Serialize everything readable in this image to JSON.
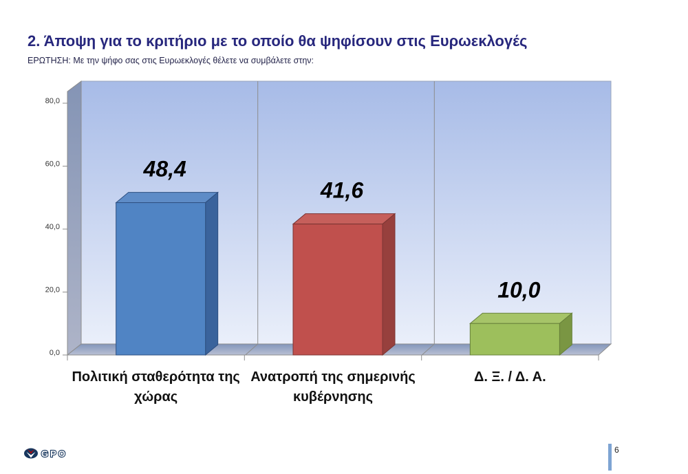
{
  "page": {
    "title": "2. Άποψη για το κριτήριο με το οποίο θα ψηφίσουν στις Ευρωεκλογές",
    "subtitle": "ΕΡΩΤΗΣΗ: Με την ψήφο σας στις Ευρωεκλογές θέλετε να συμβάλετε στην:"
  },
  "footer": {
    "logo_text": "GPO",
    "page_number": "6"
  },
  "chart_data": {
    "type": "bar",
    "style": "3d-column",
    "title": "",
    "xlabel": "",
    "ylabel": "",
    "categories": [
      "Πολιτική σταθερότητα της χώρας",
      "Ανατροπή της σημερινής κυβέρνησης",
      "Δ. Ξ. / Δ. Α."
    ],
    "values": [
      48.4,
      41.6,
      10.0
    ],
    "value_labels": [
      "48,4",
      "41,6",
      "10,0"
    ],
    "series_colors": [
      "#5084C4",
      "#C0504D",
      "#9DBF5C"
    ],
    "y_ticks": [
      {
        "value": 0,
        "label": "0,0"
      },
      {
        "value": 20,
        "label": "20,0"
      },
      {
        "value": 40,
        "label": "40,0"
      },
      {
        "value": 60,
        "label": "60,0"
      },
      {
        "value": 80,
        "label": "80,0"
      }
    ],
    "ylim": [
      0,
      80
    ],
    "gridlines": "vertical category separators only",
    "legend": "none",
    "wall_gradient": [
      "#A7BBE7",
      "#EAEFFA"
    ]
  }
}
